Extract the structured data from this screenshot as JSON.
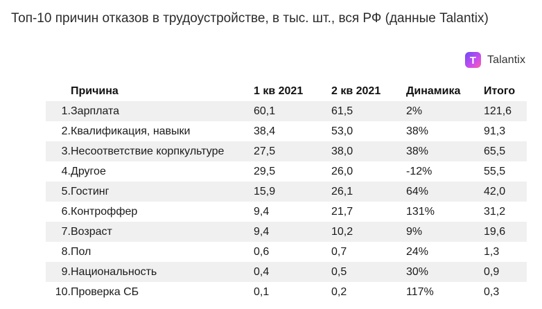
{
  "title": "Топ-10 причин отказов в трудоустройстве, в тыс. шт., вся РФ (данные Talantix)",
  "brand": {
    "logo_letter": "T",
    "name": "Talantix",
    "logo_colors": [
      "#6a4cf5",
      "#c94cf0",
      "#ff5fa2"
    ]
  },
  "table": {
    "headers": {
      "num": "",
      "reason": "Причина",
      "q1": "1 кв 2021",
      "q2": "2 кв 2021",
      "dynamic": "Динамика",
      "total": "Итого"
    },
    "rows": [
      {
        "num": "1.",
        "reason": "Зарплата",
        "q1": "60,1",
        "q2": "61,5",
        "dynamic": "2%",
        "total": "121,6"
      },
      {
        "num": "2.",
        "reason": "Квалификация, навыки",
        "q1": "38,4",
        "q2": "53,0",
        "dynamic": "38%",
        "total": "91,3"
      },
      {
        "num": "3.",
        "reason": "Несоответствие корпкультуре",
        "q1": "27,5",
        "q2": "38,0",
        "dynamic": "38%",
        "total": "65,5"
      },
      {
        "num": "4.",
        "reason": "Другое",
        "q1": "29,5",
        "q2": "26,0",
        "dynamic": "-12%",
        "total": "55,5"
      },
      {
        "num": "5.",
        "reason": "Гостинг",
        "q1": "15,9",
        "q2": "26,1",
        "dynamic": "64%",
        "total": "42,0"
      },
      {
        "num": "6.",
        "reason": "Контроффер",
        "q1": "9,4",
        "q2": "21,7",
        "dynamic": "131%",
        "total": "31,2"
      },
      {
        "num": "7.",
        "reason": "Возраст",
        "q1": "9,4",
        "q2": "10,2",
        "dynamic": "9%",
        "total": "19,6"
      },
      {
        "num": "8.",
        "reason": "Пол",
        "q1": "0,6",
        "q2": "0,7",
        "dynamic": "24%",
        "total": "1,3"
      },
      {
        "num": "9.",
        "reason": "Национальность",
        "q1": "0,4",
        "q2": "0,5",
        "dynamic": "30%",
        "total": "0,9"
      },
      {
        "num": "10.",
        "reason": "Проверка СБ",
        "q1": "0,1",
        "q2": "0,2",
        "dynamic": "117%",
        "total": "0,3"
      }
    ]
  }
}
